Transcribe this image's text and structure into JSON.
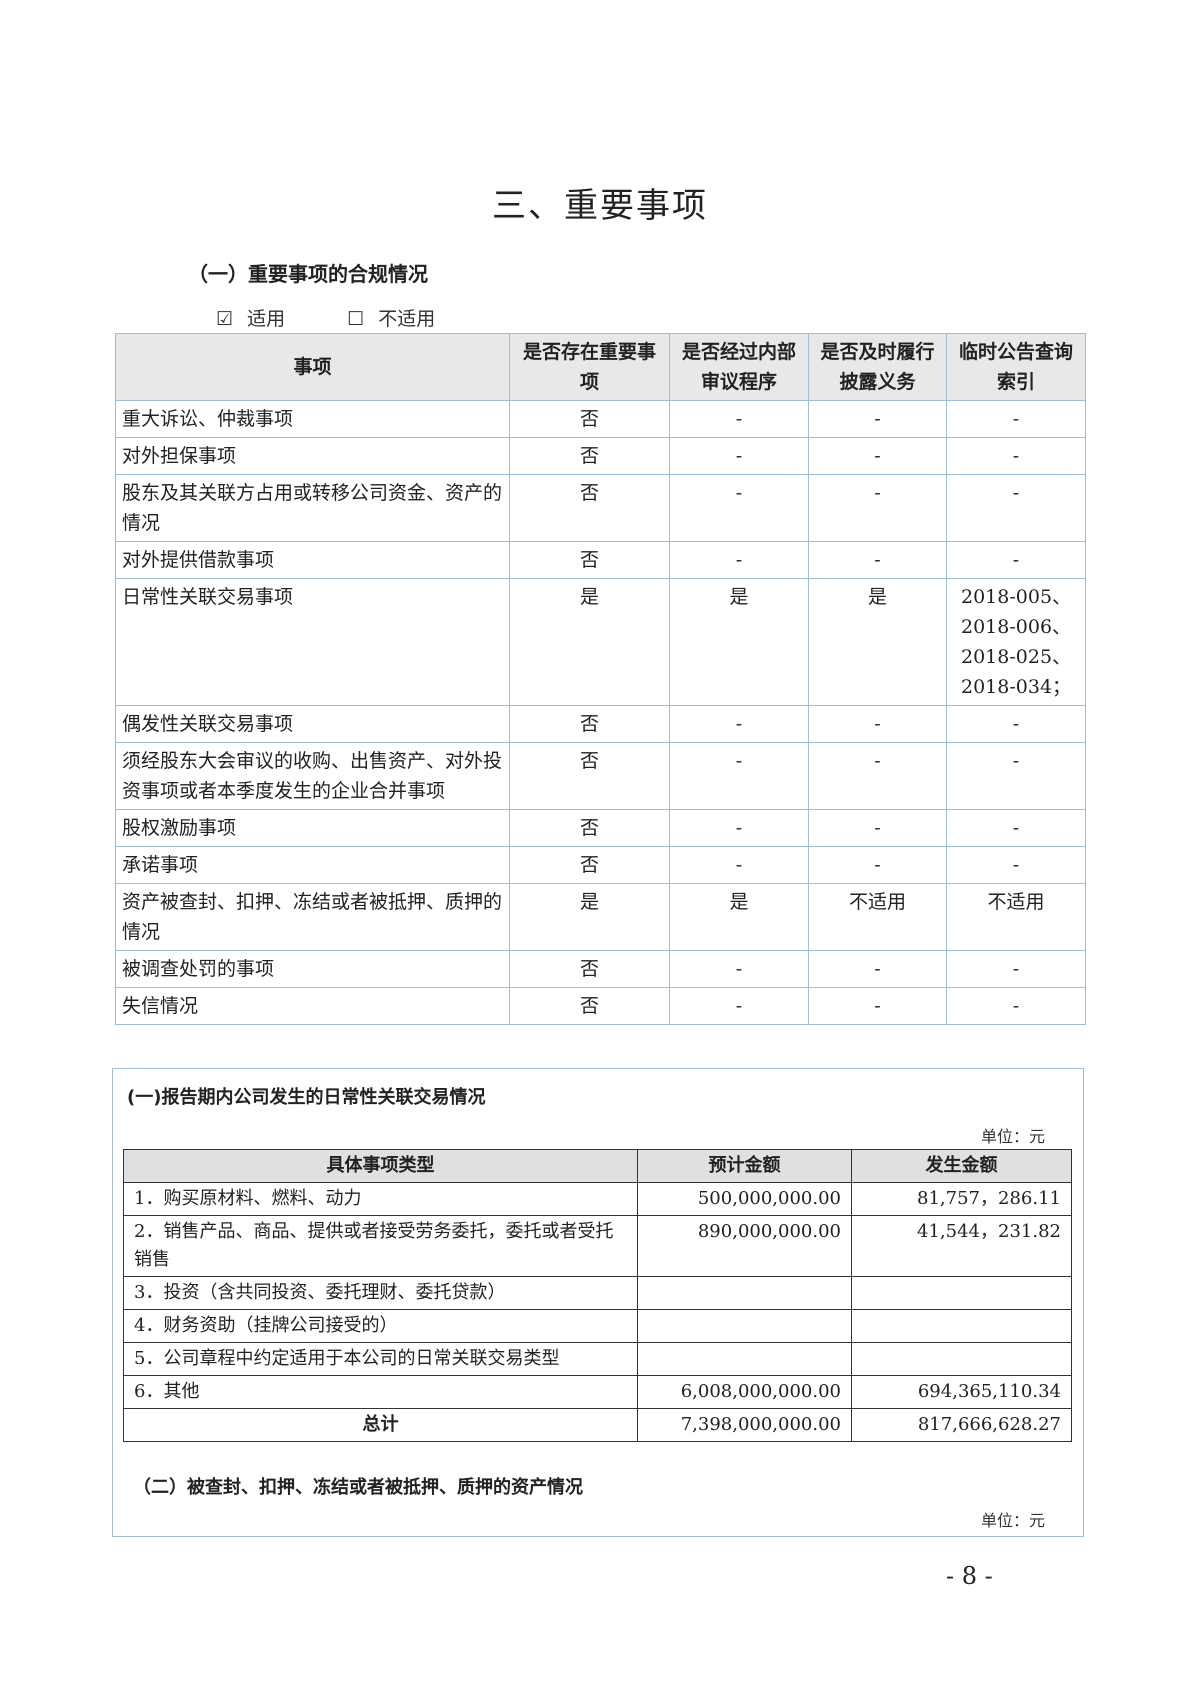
{
  "title": "三、重要事项",
  "section1": {
    "heading": "（一）重要事项的合规情况",
    "applicable_mark": "☑",
    "applicable": "适用",
    "not_applicable_mark": "☐",
    "not_applicable": "不适用"
  },
  "table1": {
    "headers": [
      "事项",
      "是否存在重要事项",
      "是否经过内部审议程序",
      "是否及时履行披露义务",
      "临时公告查询索引"
    ],
    "rows": [
      [
        "重大诉讼、仲裁事项",
        "否",
        "-",
        "-",
        "-"
      ],
      [
        "对外担保事项",
        "否",
        "-",
        "-",
        "-"
      ],
      [
        "股东及其关联方占用或转移公司资金、资产的情况",
        "否",
        "-",
        "-",
        "-"
      ],
      [
        "对外提供借款事项",
        "否",
        "-",
        "-",
        "-"
      ],
      [
        "日常性关联交易事项",
        "是",
        "是",
        "是",
        "2018-005、2018-006、2018-025、2018-034；"
      ],
      [
        "偶发性关联交易事项",
        "否",
        "-",
        "-",
        "-"
      ],
      [
        "须经股东大会审议的收购、出售资产、对外投资事项或者本季度发生的企业合并事项",
        "否",
        "-",
        "-",
        "-"
      ],
      [
        "股权激励事项",
        "否",
        "-",
        "-",
        "-"
      ],
      [
        "承诺事项",
        "否",
        "-",
        "-",
        "-"
      ],
      [
        "资产被查封、扣押、冻结或者被抵押、质押的情况",
        "是",
        "是",
        "不适用",
        "不适用"
      ],
      [
        "被调查处罚的事项",
        "否",
        "-",
        "-",
        "-"
      ],
      [
        "失信情况",
        "否",
        "-",
        "-",
        "-"
      ]
    ]
  },
  "box": {
    "title": "(一)报告期内公司发生的日常性关联交易情况",
    "unit": "单位：元",
    "headers": [
      "具体事项类型",
      "预计金额",
      "发生金额"
    ],
    "rows": [
      [
        "1．购买原材料、燃料、动力",
        "500,000,000.00",
        "81,757，286.11"
      ],
      [
        "2．销售产品、商品、提供或者接受劳务委托，委托或者受托销售",
        "890,000,000.00",
        "41,544，231.82"
      ],
      [
        "3．投资（含共同投资、委托理财、委托贷款）",
        "",
        ""
      ],
      [
        "4．财务资助（挂牌公司接受的）",
        "",
        ""
      ],
      [
        "5．公司章程中约定适用于本公司的日常关联交易类型",
        "",
        ""
      ],
      [
        "6．其他",
        "6,008,000,000.00",
        "694,365,110.34"
      ]
    ],
    "total": [
      "总计",
      "7,398,000,000.00",
      "817,666,628.27"
    ],
    "title2": "（二）被查封、扣押、冻结或者被抵押、质押的资产情况",
    "unit2": "单位：元"
  },
  "page_number": "- 8 -"
}
